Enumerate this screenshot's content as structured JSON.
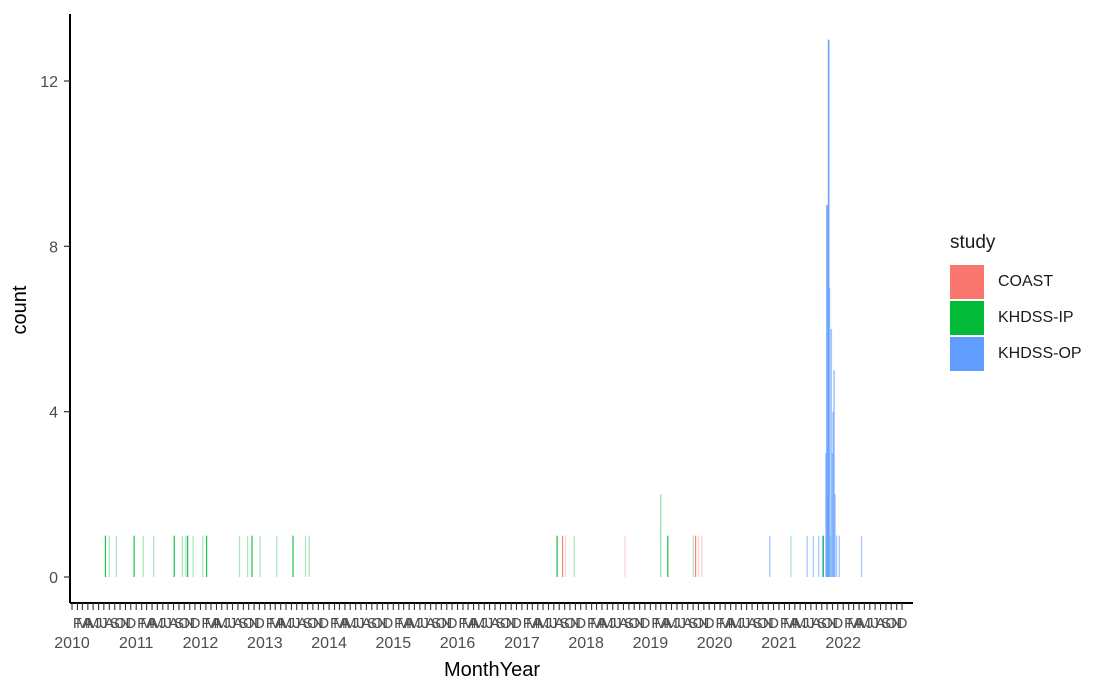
{
  "chart_data": {
    "type": "bar",
    "xlabel": "MonthYear",
    "ylabel": "count",
    "ylim": [
      0,
      13
    ],
    "y_ticks": [
      "0",
      "4",
      "8",
      "12"
    ],
    "y_tick_values": [
      0,
      4,
      8,
      12
    ],
    "x_year_labels": [
      "2010",
      "2011",
      "2012",
      "2013",
      "2014",
      "2015",
      "2016",
      "2017",
      "2018",
      "2019",
      "2020",
      "2021",
      "2022"
    ],
    "x_month_tick_labels": [
      "F",
      "M",
      "A",
      "M",
      "J",
      "J",
      "A",
      "S",
      "O",
      "N",
      "D"
    ],
    "x_range": [
      "2010-01",
      "2022-12"
    ],
    "grid": false,
    "legend": {
      "title": "study",
      "position": "right",
      "entries": [
        {
          "name": "COAST",
          "color": "#F8766D"
        },
        {
          "name": "KHDSS-IP",
          "color": "#00BA38"
        },
        {
          "name": "KHDSS-OP",
          "color": "#619CFF"
        }
      ]
    },
    "series": [
      {
        "name": "COAST",
        "color": "#F8766D",
        "points": [
          {
            "x": "2017-08-20",
            "y": 1
          },
          {
            "x": "2017-09-05",
            "y": 1
          },
          {
            "x": "2018-08-10",
            "y": 1
          },
          {
            "x": "2019-09-15",
            "y": 1
          },
          {
            "x": "2019-10-01",
            "y": 1
          },
          {
            "x": "2019-10-20",
            "y": 1
          }
        ]
      },
      {
        "name": "KHDSS-IP",
        "color": "#00BA38",
        "points": [
          {
            "x": "2010-07-10",
            "y": 1
          },
          {
            "x": "2010-08-01",
            "y": 1
          },
          {
            "x": "2010-09-10",
            "y": 1
          },
          {
            "x": "2010-12-20",
            "y": 1
          },
          {
            "x": "2011-02-10",
            "y": 1
          },
          {
            "x": "2011-04-10",
            "y": 1
          },
          {
            "x": "2011-08-05",
            "y": 1
          },
          {
            "x": "2011-09-20",
            "y": 1
          },
          {
            "x": "2011-10-10",
            "y": 1
          },
          {
            "x": "2011-10-20",
            "y": 1
          },
          {
            "x": "2011-11-20",
            "y": 1
          },
          {
            "x": "2012-01-15",
            "y": 1
          },
          {
            "x": "2012-02-05",
            "y": 1
          },
          {
            "x": "2012-08-10",
            "y": 1
          },
          {
            "x": "2012-09-25",
            "y": 1
          },
          {
            "x": "2012-10-20",
            "y": 1
          },
          {
            "x": "2012-12-05",
            "y": 1
          },
          {
            "x": "2013-03-10",
            "y": 1
          },
          {
            "x": "2013-06-10",
            "y": 1
          },
          {
            "x": "2013-08-20",
            "y": 1
          },
          {
            "x": "2013-09-10",
            "y": 1
          },
          {
            "x": "2017-07-20",
            "y": 1
          },
          {
            "x": "2017-10-25",
            "y": 1
          },
          {
            "x": "2019-03-01",
            "y": 2
          },
          {
            "x": "2019-04-10",
            "y": 1
          },
          {
            "x": "2019-09-01",
            "y": 1
          },
          {
            "x": "2021-03-10",
            "y": 1
          },
          {
            "x": "2021-09-10",
            "y": 1
          },
          {
            "x": "2021-10-05",
            "y": 2
          },
          {
            "x": "2021-10-20",
            "y": 1
          }
        ]
      },
      {
        "name": "KHDSS-OP",
        "color": "#619CFF",
        "points": [
          {
            "x": "2020-11-10",
            "y": 1
          },
          {
            "x": "2021-06-10",
            "y": 1
          },
          {
            "x": "2021-07-15",
            "y": 1
          },
          {
            "x": "2021-08-15",
            "y": 1
          },
          {
            "x": "2021-09-05",
            "y": 1
          },
          {
            "x": "2021-09-25",
            "y": 3
          },
          {
            "x": "2021-10-01",
            "y": 9
          },
          {
            "x": "2021-10-10",
            "y": 13
          },
          {
            "x": "2021-10-15",
            "y": 7
          },
          {
            "x": "2021-10-25",
            "y": 6
          },
          {
            "x": "2021-11-01",
            "y": 3
          },
          {
            "x": "2021-11-05",
            "y": 4
          },
          {
            "x": "2021-11-10",
            "y": 5
          },
          {
            "x": "2021-11-15",
            "y": 2
          },
          {
            "x": "2021-11-25",
            "y": 1
          },
          {
            "x": "2021-12-10",
            "y": 1
          },
          {
            "x": "2022-04-15",
            "y": 1
          }
        ]
      }
    ]
  }
}
